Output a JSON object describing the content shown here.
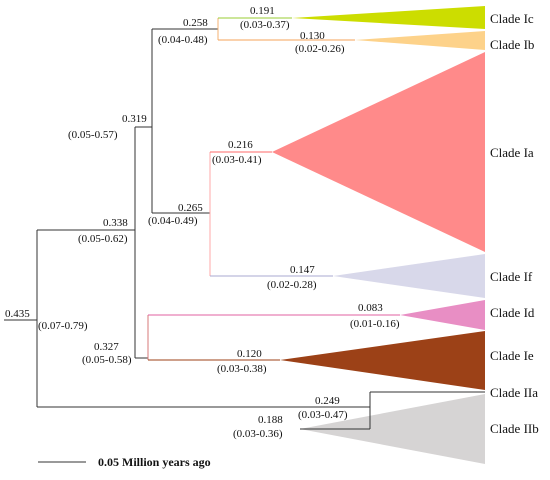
{
  "tree": {
    "root": {
      "age": "0.435"
    },
    "nodes": [
      {
        "id": "n0338",
        "age": "0.338",
        "ci": "(0.05-0.62)"
      },
      {
        "id": "n0319",
        "age": "0.319",
        "ci": "(0.05-0.57)"
      },
      {
        "id": "n0258",
        "age": "0.258",
        "ci": "(0.04-0.48)"
      },
      {
        "id": "n0191",
        "age": "0.191",
        "ci": "(0.03-0.37)"
      },
      {
        "id": "n0130",
        "age": "0.130",
        "ci": "(0.02-0.26)"
      },
      {
        "id": "n0265",
        "age": "0.265",
        "ci": "(0.04-0.49)"
      },
      {
        "id": "n0216",
        "age": "0.216",
        "ci": "(0.03-0.41)"
      },
      {
        "id": "n0147",
        "age": "0.147",
        "ci": "(0.02-0.28)"
      },
      {
        "id": "n0327",
        "age": "0.327",
        "ci": "(0.05-0.58)"
      },
      {
        "id": "n0083",
        "age": "0.083",
        "ci": "(0.01-0.16)"
      },
      {
        "id": "n0120",
        "age": "0.120",
        "ci": "(0.03-0.38)"
      },
      {
        "id": "n0249",
        "age": "0.249",
        "ci": "(0.03-0.47)"
      },
      {
        "id": "n0188",
        "age": "0.188",
        "ci": "(0.03-0.36)"
      }
    ],
    "root_ci": "(0.07-0.79)",
    "clades": [
      {
        "name": "Clade Ic",
        "color": "#ccdd00"
      },
      {
        "name": "Clade Ib",
        "color": "#fdd28a"
      },
      {
        "name": "Clade Ia",
        "color": "#ff8a8a"
      },
      {
        "name": "Clade If",
        "color": "#d8d8ea"
      },
      {
        "name": "Clade Id",
        "color": "#e88ec4"
      },
      {
        "name": "Clade Ie",
        "color": "#9c4117"
      },
      {
        "name": "Clade IIa",
        "color": "#555555"
      },
      {
        "name": "Clade IIb",
        "color": "#d6d4d4"
      }
    ]
  },
  "scale_bar": {
    "label": "0.05 Million years ago"
  }
}
